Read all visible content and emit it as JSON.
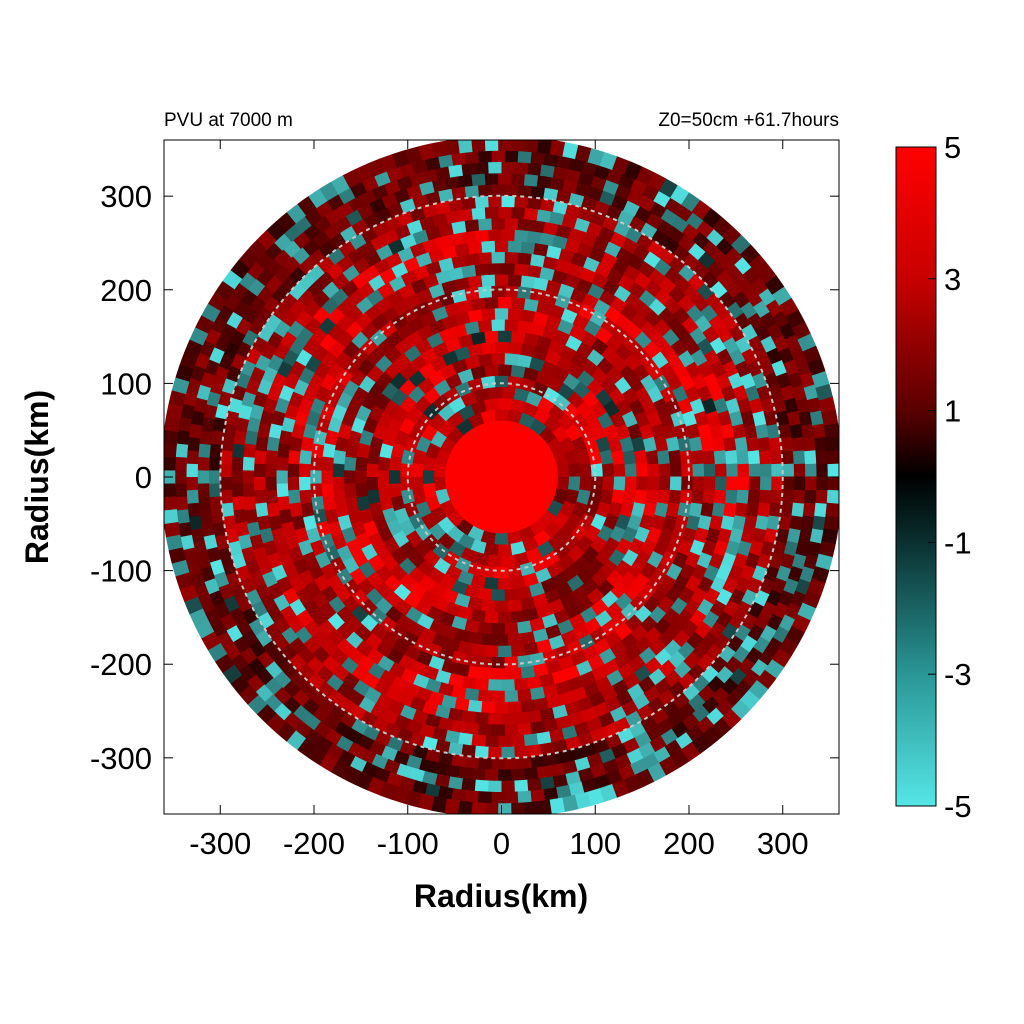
{
  "chart_data": {
    "type": "heatmap",
    "subtitle_left": "PVU at  7000 m",
    "subtitle_right": "Z0=50cm  +61.7hours",
    "xlabel": "Radius(km)",
    "ylabel": "Radius(km)",
    "xlim": [
      -360,
      360
    ],
    "ylim": [
      -360,
      360
    ],
    "x_ticks": [
      -300,
      -200,
      -100,
      0,
      100,
      200,
      300
    ],
    "y_ticks": [
      300,
      200,
      100,
      0,
      -100,
      -200,
      -300
    ],
    "data_domain_radius_km": 360,
    "range_rings_km": [
      100,
      200,
      300
    ],
    "grid": false,
    "colorbar": {
      "range": [
        -5,
        5
      ],
      "ticks": [
        5,
        3,
        1,
        -1,
        -3,
        -5
      ],
      "colors": {
        "max": "#ff0000",
        "mid": "#000000",
        "min": "#55e6e6"
      }
    },
    "field_description_values": {
      "core_value": 5,
      "core_radius_km": 60,
      "background_value": 1.5
    }
  },
  "colors": {
    "ring": "#c8c8c8",
    "frame": "#000000"
  }
}
